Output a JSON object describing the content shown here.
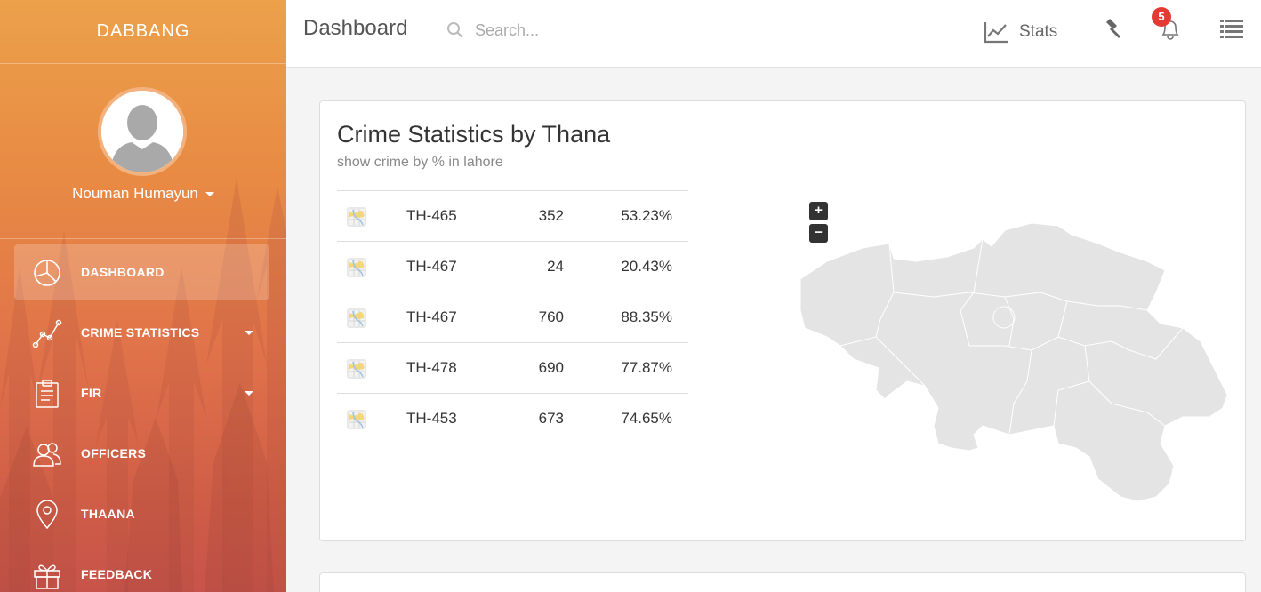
{
  "sidebar": {
    "brand": "DABBANG",
    "user": {
      "name": "Nouman Humayun"
    },
    "items": [
      {
        "label": "DASHBOARD",
        "icon": "pie-chart-icon",
        "active": true
      },
      {
        "label": "CRIME STATISTICS",
        "icon": "line-chart-icon",
        "dropdown": true
      },
      {
        "label": "FIR",
        "icon": "clipboard-icon",
        "dropdown": true
      },
      {
        "label": "OFFICERS",
        "icon": "users-icon"
      },
      {
        "label": "THAANA",
        "icon": "map-pin-icon"
      },
      {
        "label": "FEEDBACK",
        "icon": "gift-icon"
      }
    ]
  },
  "header": {
    "title": "Dashboard",
    "search": {
      "placeholder": "Search...",
      "value": ""
    },
    "stats_label": "Stats",
    "notifications_count": "5"
  },
  "card": {
    "title": "Crime Statistics by Thana",
    "subtitle": "show crime by % in lahore",
    "rows": [
      {
        "thana": "TH-465",
        "count": "352",
        "percent": "53.23%"
      },
      {
        "thana": "TH-467",
        "count": "24",
        "percent": "20.43%"
      },
      {
        "thana": "TH-467",
        "count": "760",
        "percent": "88.35%"
      },
      {
        "thana": "TH-478",
        "count": "690",
        "percent": "77.87%"
      },
      {
        "thana": "TH-453",
        "count": "673",
        "percent": "74.65%"
      }
    ],
    "map": {
      "zoom_in": "+",
      "zoom_out": "−"
    }
  },
  "colors": {
    "sidebar_top": "#eca14a",
    "sidebar_bottom": "#c7534a",
    "badge": "#e53935",
    "map_fill": "#e4e4e4"
  }
}
